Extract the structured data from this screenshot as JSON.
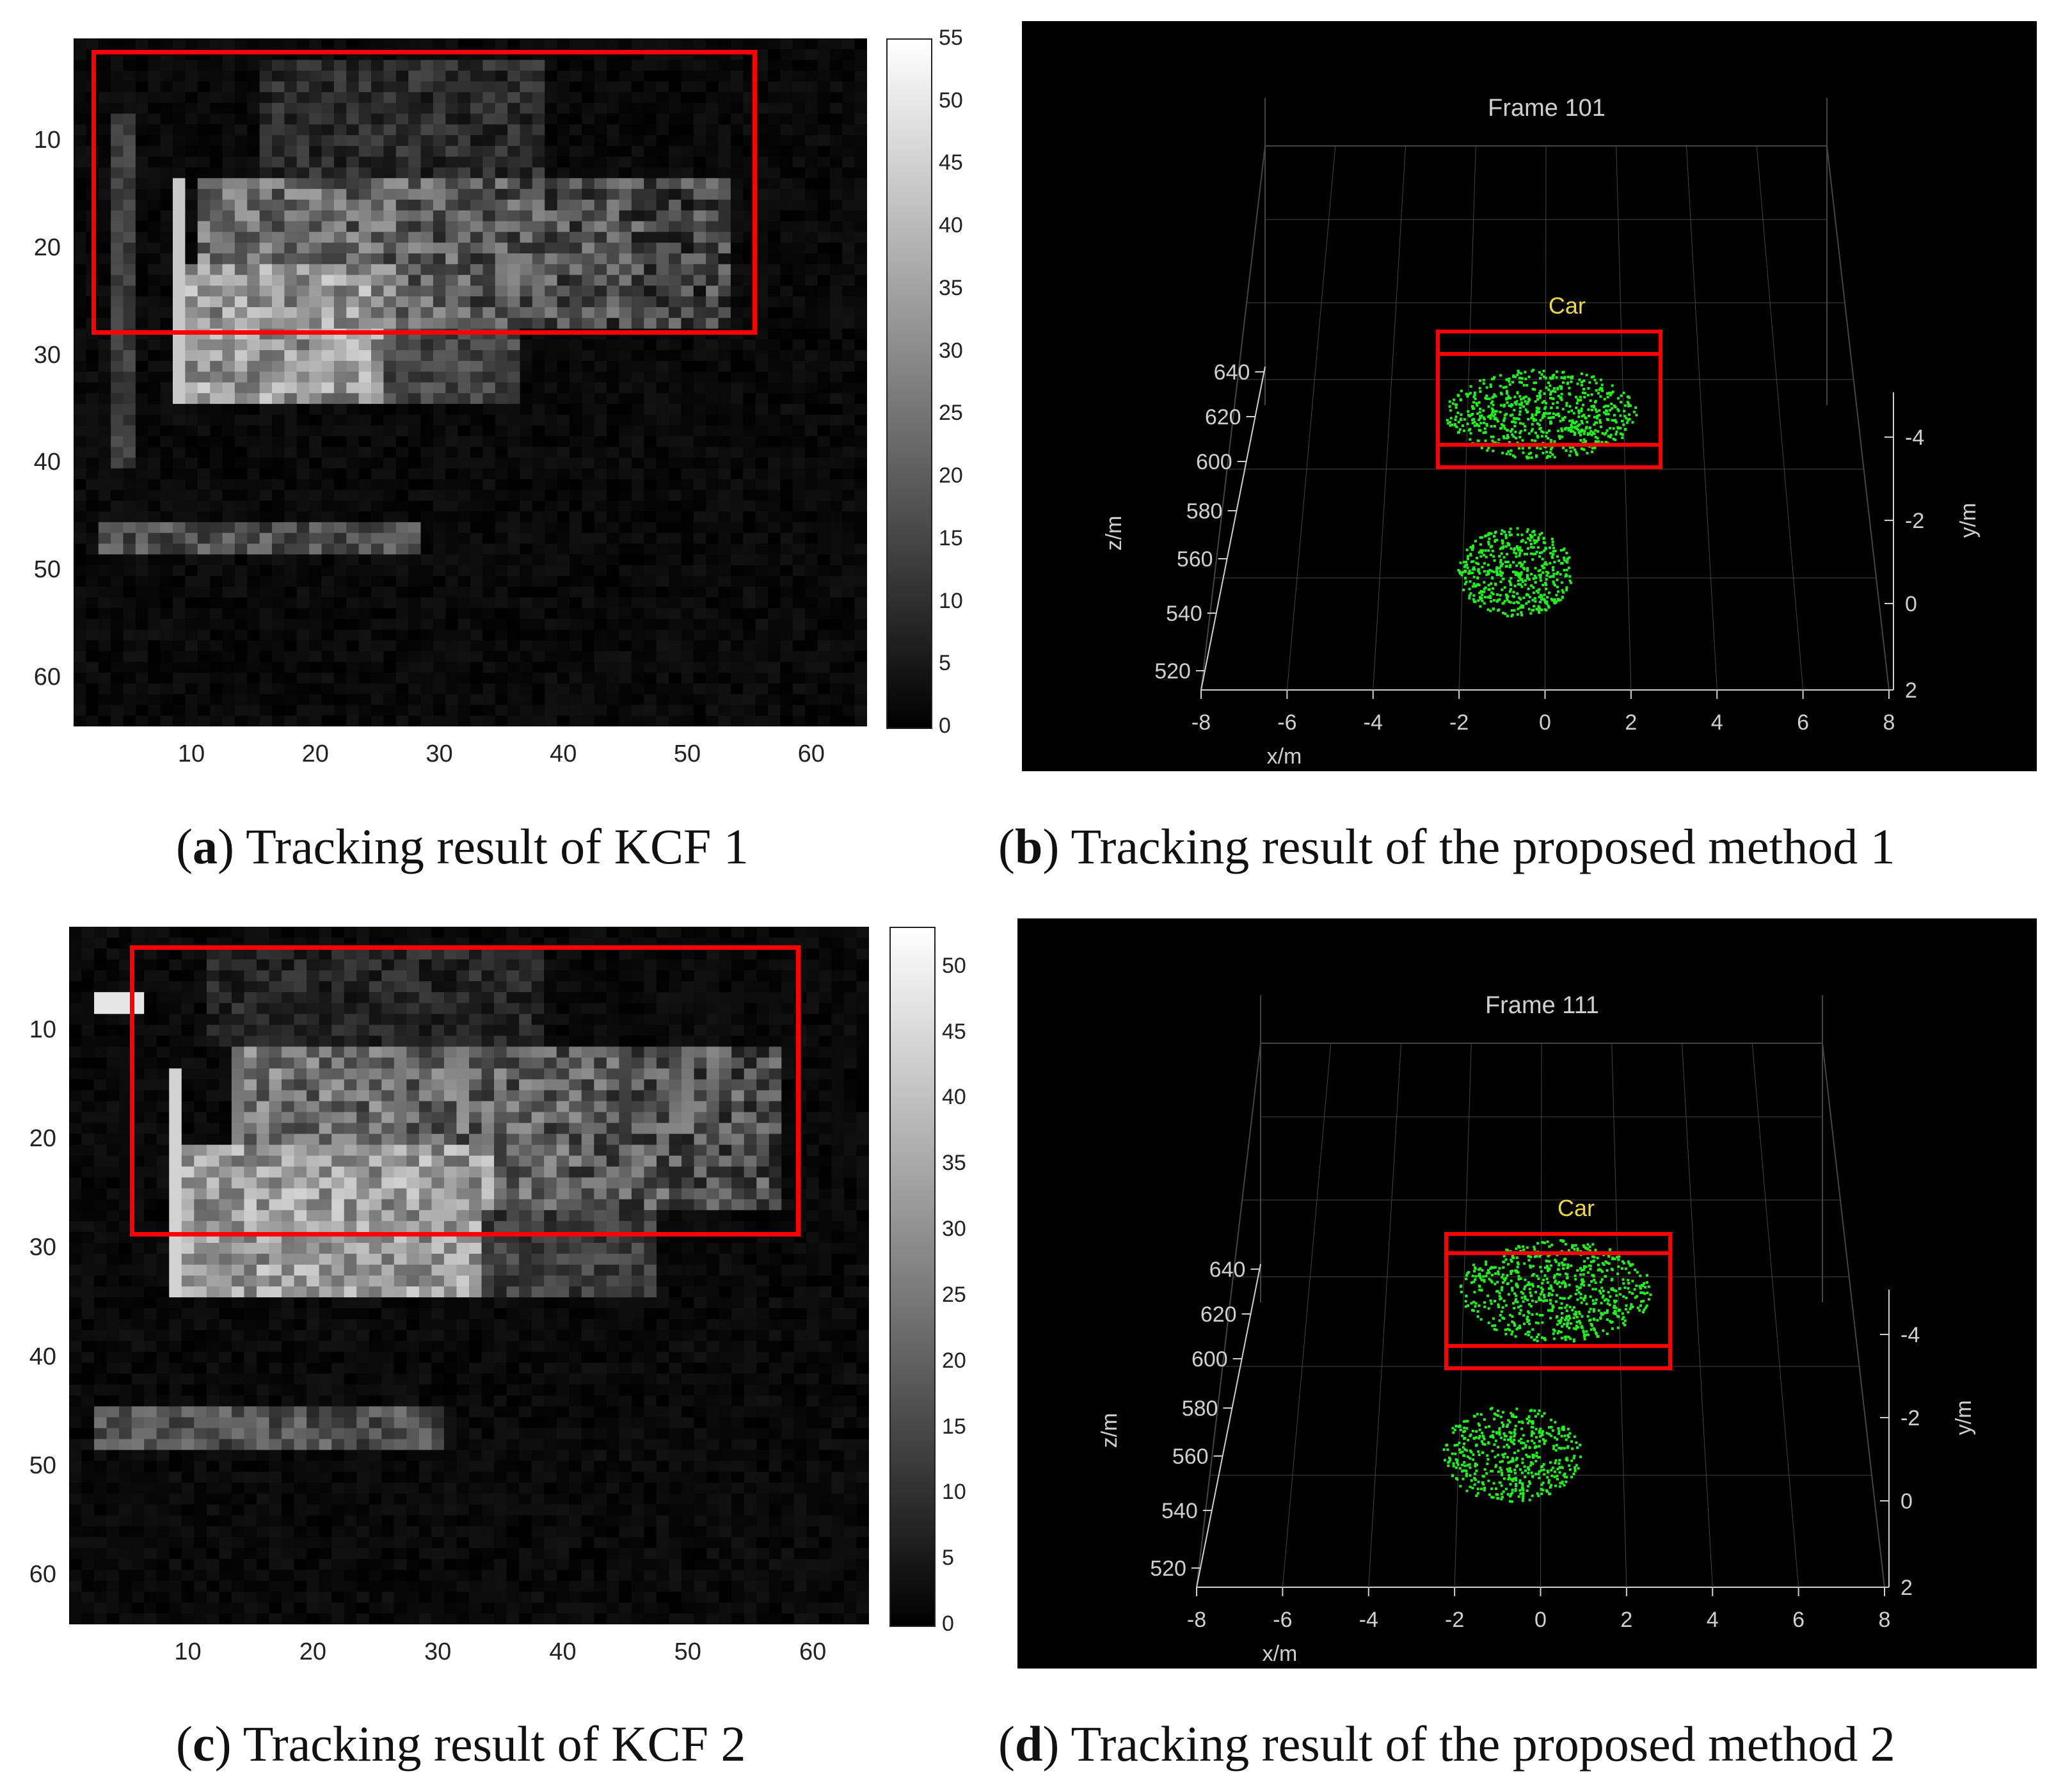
{
  "figures": [
    {
      "id": "a",
      "kind": "heatmap",
      "caption_letter": "a",
      "caption_text": "Tracking result of KCF 1",
      "y_ticks": [
        "10",
        "20",
        "30",
        "40",
        "50",
        "60"
      ],
      "x_ticks": [
        "10",
        "20",
        "30",
        "40",
        "50",
        "60"
      ],
      "colorbar_ticks": [
        "55",
        "50",
        "45",
        "40",
        "35",
        "30",
        "25",
        "20",
        "15",
        "10",
        "5",
        "0"
      ],
      "colorbar_range": [
        0,
        55
      ]
    },
    {
      "id": "b",
      "kind": "pointcloud",
      "caption_letter": "b",
      "caption_text": "Tracking result of the proposed method 1",
      "frame_title": "Frame 101",
      "object_label": "Car",
      "x_ticks": [
        "-8",
        "-6",
        "-4",
        "-2",
        "0",
        "2",
        "4",
        "6",
        "8"
      ],
      "x_label": "x/m",
      "z_ticks": [
        "640",
        "620",
        "600",
        "580",
        "560",
        "540",
        "520"
      ],
      "z_label": "z/m",
      "y_ticks": [
        "-4",
        "-2",
        "0",
        "2"
      ],
      "y_label": "y/m"
    },
    {
      "id": "c",
      "kind": "heatmap",
      "caption_letter": "c",
      "caption_text": "Tracking result of KCF 2",
      "y_ticks": [
        "10",
        "20",
        "30",
        "40",
        "50",
        "60"
      ],
      "x_ticks": [
        "10",
        "20",
        "30",
        "40",
        "50",
        "60"
      ],
      "colorbar_ticks": [
        "50",
        "45",
        "40",
        "35",
        "30",
        "25",
        "20",
        "15",
        "10",
        "5",
        "0"
      ],
      "colorbar_range": [
        0,
        53
      ]
    },
    {
      "id": "d",
      "kind": "pointcloud",
      "caption_letter": "d",
      "caption_text": "Tracking result of the proposed method 2",
      "frame_title": "Frame 111",
      "object_label": "Car",
      "x_ticks": [
        "-8",
        "-6",
        "-4",
        "-2",
        "0",
        "2",
        "4",
        "6",
        "8"
      ],
      "x_label": "x/m",
      "z_ticks": [
        "640",
        "620",
        "600",
        "580",
        "560",
        "540",
        "520"
      ],
      "z_label": "z/m",
      "y_ticks": [
        "-4",
        "-2",
        "0",
        "2"
      ],
      "y_label": "y/m"
    }
  ],
  "colors": {
    "tracking_box": "#ff0000",
    "points": "#22ee22",
    "label": "#e8d84a",
    "pc_axis": "#cfcfcf"
  }
}
